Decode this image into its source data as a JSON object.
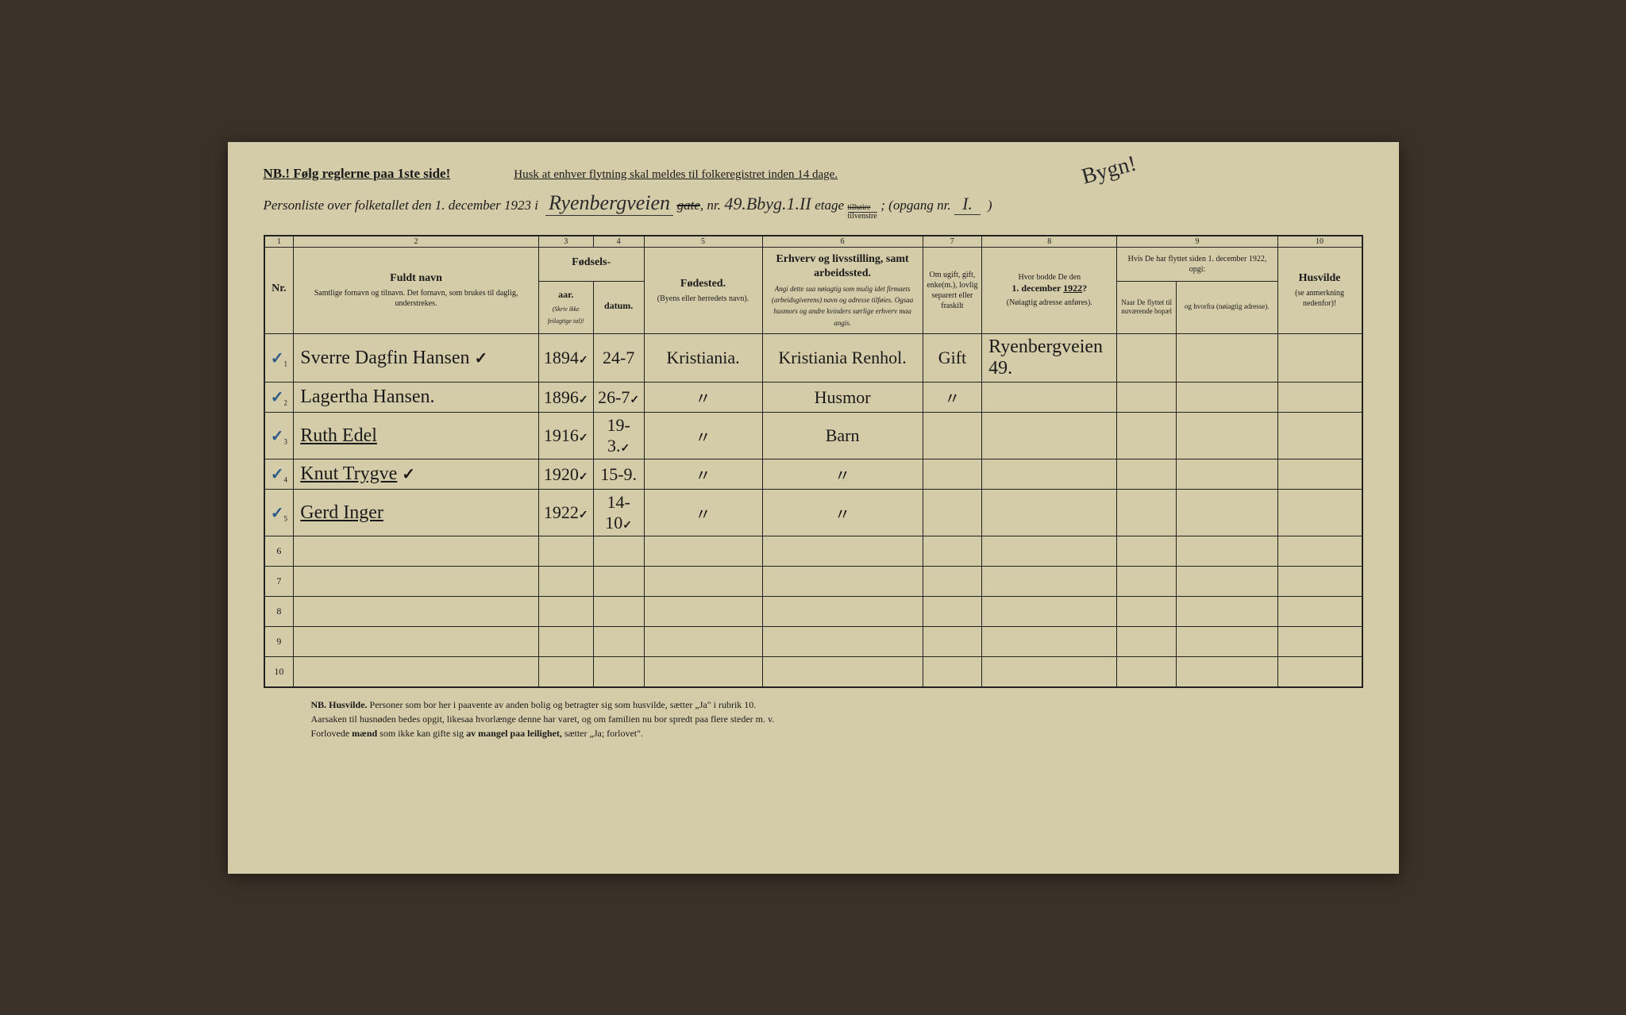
{
  "header": {
    "nb_text": "NB.! Følg reglerne paa 1ste side!",
    "husk_text": "Husk at enhver flytning skal meldes til folkeregistret inden 14 dage.",
    "personliste_prefix": "Personliste over folketallet den 1. december 1923 i",
    "street_name": "Ryenbergveien",
    "gate_struck": "gate",
    "nr_label": ", nr.",
    "house_nr": "49.B",
    "byg_label": "byg.",
    "byg_nr": "1.",
    "etage_nr": "II",
    "etage_label": "etage",
    "side_top": "tilhøire",
    "side_bottom": "tilvenstre",
    "opgang_label": "; (opgang nr.",
    "opgang_nr": "I.",
    "opgang_close": ")",
    "annotation": "Bygn!"
  },
  "columns": {
    "nr": "Nr.",
    "col2_main": "Fuldt navn",
    "col2_sub": "Samtlige fornavn og tilnavn. Det fornavn, som brukes til daglig, understrekes.",
    "col34_main": "Fødsels-",
    "col3": "aar.",
    "col4": "datum.",
    "col34_note": "(Skriv ikke feilagtige tal)!",
    "col5_main": "Fødested.",
    "col5_sub": "(Byens eller herredets navn).",
    "col6_main": "Erhverv og livsstilling, samt arbeidssted.",
    "col6_sub": "Angi dette saa nøiagtig som mulig idet firmaets (arbeidsgiverens) navn og adresse tilføies. Ogsaa husmors og andre kvinders særlige erhverv maa angis.",
    "col7": "Om ugift, gift, enke(m.), lovlig separert eller fraskilt",
    "col8_main": "Hvor bodde De den 1. december 1922?",
    "col8_sub": "(Nøiagtig adresse anføres).",
    "col9_main": "Hvis De har flyttet siden 1. december 1922, opgi:",
    "col9a": "Naar De flyttet til nuværende bopæl",
    "col9b": "og hvorfra (nøiagtig adresse).",
    "col10_main": "Husvilde",
    "col10_sub": "(se anmerkning nedenfor)!",
    "numbers": [
      "1",
      "2",
      "3",
      "4",
      "5",
      "6",
      "7",
      "8",
      "9",
      "10"
    ]
  },
  "rows": [
    {
      "nr": "1",
      "check": "✓",
      "name": "Sverre Dagfin Hansen",
      "name_check": "✓",
      "year": "1894",
      "year_check": "✓",
      "date": "24-7",
      "birthplace": "Kristiania.",
      "occupation": "Kristiania Renhol.",
      "status": "Gift",
      "address_1922": "Ryenbergveien 49.",
      "moved_when": "",
      "moved_from": "",
      "husvilde": ""
    },
    {
      "nr": "2",
      "check": "✓",
      "name": "Lagertha Hansen.",
      "name_check": "",
      "year": "1896",
      "year_check": "✓",
      "date": "26-7",
      "date_check": "✓",
      "birthplace": "〃",
      "occupation": "Husmor",
      "status": "〃",
      "address_1922": "",
      "moved_when": "",
      "moved_from": "",
      "husvilde": ""
    },
    {
      "nr": "3",
      "check": "✓",
      "name": "Ruth Edel",
      "name_underline": true,
      "name_check": "",
      "year": "1916",
      "year_check": "✓",
      "date": "19-3.",
      "date_check": "✓",
      "birthplace": "〃",
      "occupation": "Barn",
      "status": "",
      "address_1922": "",
      "moved_when": "",
      "moved_from": "",
      "husvilde": ""
    },
    {
      "nr": "4",
      "check": "✓",
      "name": "Knut Trygve",
      "name_underline": true,
      "name_check": "✓",
      "year": "1920",
      "year_check": "✓",
      "date": "15-9.",
      "birthplace": "〃",
      "occupation": "〃",
      "status": "",
      "address_1922": "",
      "moved_when": "",
      "moved_from": "",
      "husvilde": ""
    },
    {
      "nr": "5",
      "check": "✓",
      "name": "Gerd Inger",
      "name_underline": true,
      "name_check": "",
      "year": "1922",
      "year_check": "✓",
      "date": "14-10",
      "date_check": "✓",
      "birthplace": "〃",
      "occupation": "〃",
      "status": "",
      "address_1922": "",
      "moved_when": "",
      "moved_from": "",
      "husvilde": ""
    }
  ],
  "empty_rows": [
    "6",
    "7",
    "8",
    "9",
    "10"
  ],
  "footer": {
    "nb_label": "NB. Husvilde.",
    "line1": "Personer som bor her i paavente av anden bolig og betragter sig som husvilde, sætter „Ja\" i rubrik 10.",
    "line2": "Aarsaken til husnøden bedes opgit, likesaa hvorlænge denne har varet, og om familien nu bor spredt paa flere steder m. v.",
    "line3_a": "Forlovede ",
    "line3_b": "mænd",
    "line3_c": " som ikke kan gifte sig ",
    "line3_d": "av mangel paa leilighet,",
    "line3_e": " sætter „Ja; forlovet\"."
  },
  "colors": {
    "paper": "#d4cba8",
    "ink": "#1a1a1a",
    "blue_check": "#2a5a8a",
    "background": "#3a3228"
  }
}
